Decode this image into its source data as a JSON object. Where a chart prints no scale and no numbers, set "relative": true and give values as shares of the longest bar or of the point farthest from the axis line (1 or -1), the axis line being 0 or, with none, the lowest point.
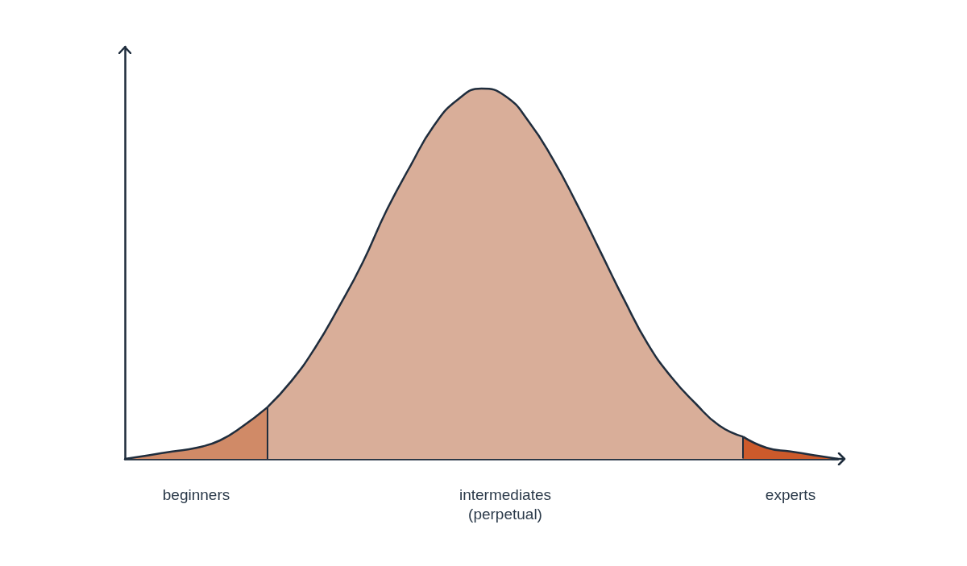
{
  "chart_data": {
    "type": "area",
    "relative": true,
    "categories": [
      null,
      null,
      null,
      null,
      null,
      null,
      null,
      null,
      null,
      null,
      null,
      null,
      null,
      null,
      null,
      null,
      null,
      null,
      null,
      null,
      null,
      null,
      null,
      null,
      null,
      null,
      null,
      null,
      null,
      null,
      null
    ],
    "series": [
      {
        "name": "beginners",
        "color": "#d08a67",
        "values": [
          0.0,
          0.01,
          0.02,
          0.03,
          0.05,
          0.09,
          0.14,
          null,
          null,
          null,
          null,
          null,
          null,
          null,
          null,
          null,
          null,
          null,
          null,
          null,
          null,
          null,
          null,
          null,
          null,
          null,
          null,
          null,
          null,
          null,
          null
        ]
      },
      {
        "name": "intermediates\n(perpetual)",
        "color": "#d9ae99",
        "values": [
          null,
          null,
          null,
          null,
          null,
          null,
          0.14,
          0.21,
          0.3,
          0.41,
          0.53,
          0.67,
          0.79,
          0.9,
          0.97,
          1.0,
          0.98,
          0.91,
          0.81,
          0.69,
          0.56,
          0.43,
          0.31,
          0.22,
          0.15,
          0.09,
          0.06,
          null,
          null,
          null,
          null
        ]
      },
      {
        "name": "experts",
        "color": "#cc5a2b",
        "values": [
          null,
          null,
          null,
          null,
          null,
          null,
          null,
          null,
          null,
          null,
          null,
          null,
          null,
          null,
          null,
          null,
          null,
          null,
          null,
          null,
          null,
          null,
          null,
          null,
          null,
          null,
          0.06,
          0.03,
          0.02,
          0.01,
          0.0
        ]
      }
    ]
  }
}
